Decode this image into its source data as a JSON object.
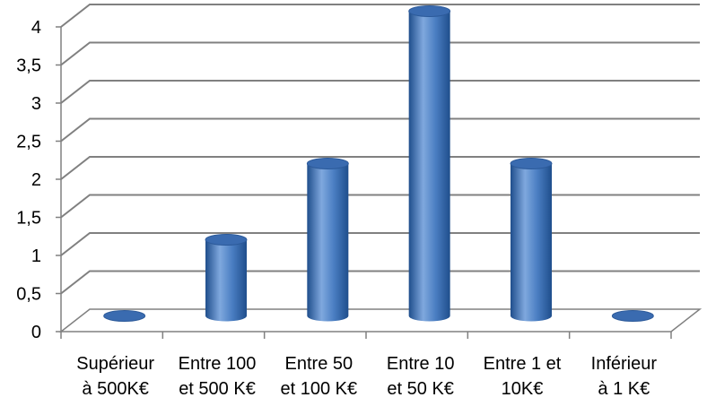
{
  "chart_data": {
    "type": "bar",
    "title": "",
    "xlabel": "",
    "ylabel": "",
    "categories": [
      [
        "Supérieur",
        "à  500K€"
      ],
      [
        "Entre 100",
        "et 500 K€"
      ],
      [
        "Entre 50",
        "et 100 K€"
      ],
      [
        "Entre 10",
        "et 50 K€"
      ],
      [
        "Entre 1 et",
        "10K€"
      ],
      [
        "Inférieur",
        "à 1 K€"
      ]
    ],
    "values": [
      0,
      1,
      2,
      4,
      2,
      0
    ],
    "ylim": [
      0,
      4
    ],
    "yticks": [
      "0",
      "0,5",
      "1",
      "1,5",
      "2",
      "2,5",
      "3",
      "3,5",
      "4"
    ],
    "ytick_values": [
      0,
      0.5,
      1,
      1.5,
      2,
      2.5,
      3,
      3.5,
      4
    ],
    "grid": true,
    "legend": "none",
    "style": "3d-cylinder",
    "bar_color": "#4A7EC2",
    "bar_dark": "#1F4E8C",
    "bar_light": "#7FA8DE",
    "top_color": "#3A6BB0",
    "grid_color": "#808080"
  }
}
